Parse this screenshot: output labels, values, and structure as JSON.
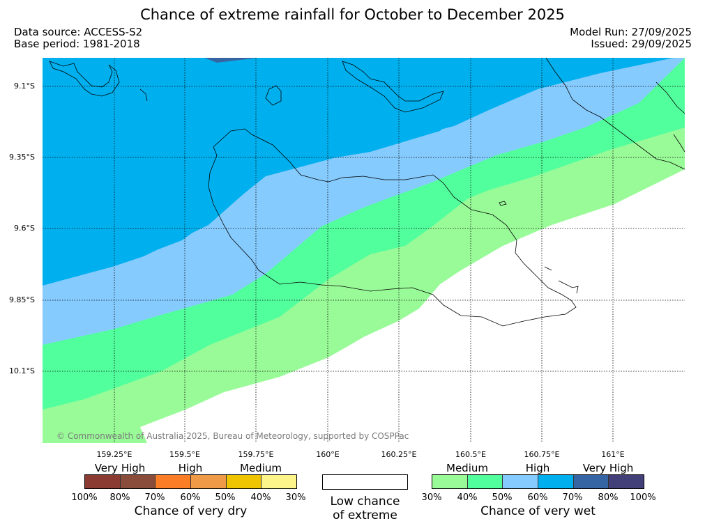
{
  "header": {
    "title": "Chance of extreme rainfall for October to December 2025",
    "data_source": "Data source: ACCESS-S2",
    "base_period": "Base period: 1981-2018",
    "model_run": "Model Run: 27/09/2025",
    "issued": "Issued: 29/09/2025"
  },
  "map": {
    "lat_labels": [
      "9.1°S",
      "9.35°S",
      "9.6°S",
      "9.85°S",
      "10.1°S"
    ],
    "lon_labels": [
      "159.25°E",
      "159.5°E",
      "159.75°E",
      "160°E",
      "160.25°E",
      "160.5°E",
      "160.75°E",
      "161°E"
    ],
    "copyright": "© Commonwealth of Australia 2025, Bureau of Meteorology, supported by COSPPac",
    "band_colors": {
      "c30_40": "#99fb98",
      "c40_50": "#52ff9d",
      "c50_60": "#86cbfe",
      "c60_70": "#00b0ee",
      "c70_80": "#3566a3"
    }
  },
  "legend": {
    "dry": {
      "groups": [
        "Very High",
        "High",
        "Medium"
      ],
      "colors": [
        "#8c3b32",
        "#8a4d3c",
        "#fb7d26",
        "#ef9a47",
        "#efc400",
        "#fef58a"
      ],
      "ticks": [
        "100%",
        "80%",
        "70%",
        "60%",
        "50%",
        "40%",
        "30%"
      ],
      "caption": "Chance of very dry"
    },
    "low": {
      "line1": "Low chance",
      "line2": "of extreme"
    },
    "wet": {
      "groups": [
        "Medium",
        "High",
        "Very High"
      ],
      "colors": [
        "#99fb98",
        "#52ff9d",
        "#86cbfe",
        "#00b0ee",
        "#3566a3",
        "#433f79"
      ],
      "ticks": [
        "30%",
        "40%",
        "50%",
        "60%",
        "70%",
        "80%",
        "100%"
      ],
      "caption": "Chance of very wet"
    }
  }
}
